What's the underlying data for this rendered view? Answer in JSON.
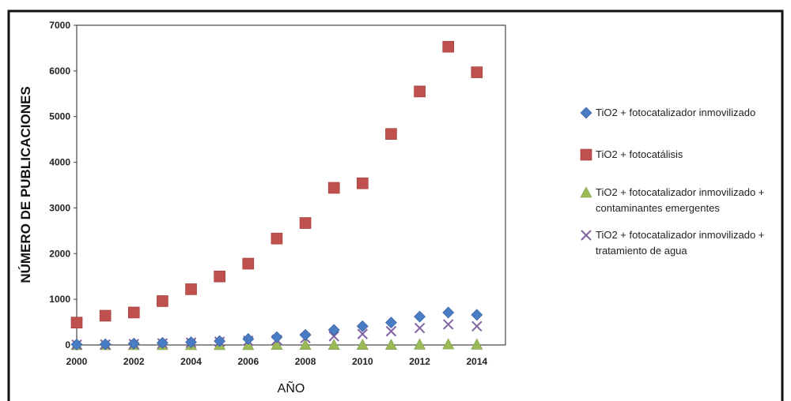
{
  "chart_data": {
    "type": "scatter",
    "title": "",
    "xlabel": "AÑO",
    "ylabel": "NÚMERO DE PUBLICACIONES",
    "xlim": [
      2000,
      2015
    ],
    "ylim": [
      0,
      7000
    ],
    "x_ticks": [
      "2000",
      "2002",
      "2004",
      "2006",
      "2008",
      "2010",
      "2012",
      "2014"
    ],
    "y_ticks": [
      "0",
      "1000",
      "2000",
      "3000",
      "4000",
      "5000",
      "6000",
      "7000"
    ],
    "grid": false,
    "legend_position": "right",
    "x": [
      2000,
      2001,
      2002,
      2003,
      2004,
      2005,
      2006,
      2007,
      2008,
      2009,
      2010,
      2011,
      2012,
      2013,
      2014
    ],
    "series": [
      {
        "name": "TiO2 + fotocatalizador inmovilizado",
        "legend_lines": [
          "TiO2 + fotocatalizador inmovilizado"
        ],
        "marker": "diamond",
        "color": "#4a7cc3",
        "values": [
          10,
          15,
          30,
          45,
          60,
          85,
          130,
          170,
          220,
          330,
          410,
          490,
          620,
          710,
          660
        ]
      },
      {
        "name": "TiO2 + fotocatálisis",
        "legend_lines": [
          "TiO2 + fotocatálisis"
        ],
        "marker": "square",
        "color": "#c0504d",
        "values": [
          490,
          640,
          710,
          960,
          1220,
          1500,
          1780,
          2330,
          2670,
          3440,
          3540,
          4620,
          5550,
          6530,
          5970
        ]
      },
      {
        "name": "TiO2 + fotocatalizador inmovilizado + contaminantes emergentes",
        "legend_lines": [
          "TiO2 + fotocatalizador inmovilizado +",
          "contaminantes emergentes"
        ],
        "marker": "triangle",
        "color": "#9bbb59",
        "values": [
          0,
          0,
          0,
          0,
          0,
          0,
          0,
          5,
          5,
          5,
          5,
          5,
          10,
          15,
          10
        ]
      },
      {
        "name": "TiO2 + fotocatalizador inmovilizado + tratamiento de agua",
        "legend_lines": [
          "TiO2 + fotocatalizador inmovilizado +",
          "tratamiento de agua"
        ],
        "marker": "x",
        "color": "#8064a2",
        "values": [
          5,
          10,
          20,
          35,
          50,
          70,
          90,
          110,
          150,
          190,
          240,
          300,
          370,
          450,
          410
        ]
      }
    ]
  }
}
